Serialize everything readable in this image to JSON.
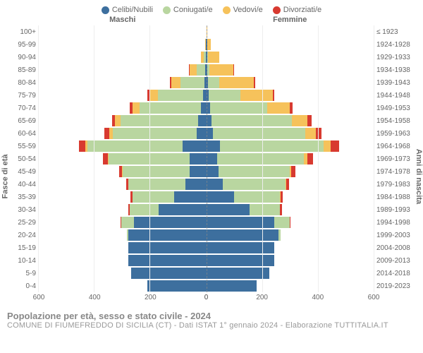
{
  "legend": [
    {
      "label": "Celibi/Nubili",
      "color": "#3d6f9e"
    },
    {
      "label": "Coniugati/e",
      "color": "#b9d6a0"
    },
    {
      "label": "Vedovi/e",
      "color": "#f6c25b"
    },
    {
      "label": "Divorziati/e",
      "color": "#d83a30"
    }
  ],
  "headers": {
    "male": "Maschi",
    "female": "Femmine",
    "birth_years": "≤ 1923"
  },
  "axis": {
    "y_left_title": "Fasce di età",
    "y_right_title": "Anni di nascita",
    "x_ticks": [
      600,
      400,
      200,
      0,
      200,
      400,
      600
    ],
    "x_max": 600
  },
  "age_labels": [
    "100+",
    "95-99",
    "90-94",
    "85-89",
    "80-84",
    "75-79",
    "70-74",
    "65-69",
    "60-64",
    "55-59",
    "50-54",
    "45-49",
    "40-44",
    "35-39",
    "30-34",
    "25-29",
    "20-24",
    "15-19",
    "10-14",
    "5-9",
    "0-4"
  ],
  "birth_labels": [
    "≤ 1923",
    "1924-1928",
    "1929-1933",
    "1934-1938",
    "1939-1943",
    "1944-1948",
    "1949-1953",
    "1954-1958",
    "1959-1963",
    "1964-1968",
    "1969-1973",
    "1974-1978",
    "1979-1983",
    "1984-1988",
    "1989-1993",
    "1994-1998",
    "1999-2003",
    "2004-2008",
    "2009-2013",
    "2014-2018",
    "2019-2023"
  ],
  "bars": {
    "male": [
      {
        "c": 0,
        "m": 0,
        "w": 0,
        "d": 0
      },
      {
        "c": 2,
        "m": 0,
        "w": 2,
        "d": 0
      },
      {
        "c": 2,
        "m": 6,
        "w": 10,
        "d": 0
      },
      {
        "c": 4,
        "m": 30,
        "w": 25,
        "d": 2
      },
      {
        "c": 6,
        "m": 85,
        "w": 35,
        "d": 4
      },
      {
        "c": 12,
        "m": 160,
        "w": 32,
        "d": 6
      },
      {
        "c": 20,
        "m": 220,
        "w": 25,
        "d": 10
      },
      {
        "c": 28,
        "m": 280,
        "w": 18,
        "d": 12
      },
      {
        "c": 35,
        "m": 300,
        "w": 12,
        "d": 18
      },
      {
        "c": 85,
        "m": 340,
        "w": 8,
        "d": 22
      },
      {
        "c": 60,
        "m": 290,
        "w": 3,
        "d": 17
      },
      {
        "c": 60,
        "m": 240,
        "w": 2,
        "d": 10
      },
      {
        "c": 75,
        "m": 205,
        "w": 0,
        "d": 8
      },
      {
        "c": 115,
        "m": 150,
        "w": 0,
        "d": 6
      },
      {
        "c": 170,
        "m": 105,
        "w": 0,
        "d": 4
      },
      {
        "c": 260,
        "m": 45,
        "w": 0,
        "d": 2
      },
      {
        "c": 280,
        "m": 4,
        "w": 0,
        "d": 0
      },
      {
        "c": 280,
        "m": 0,
        "w": 0,
        "d": 0
      },
      {
        "c": 280,
        "m": 0,
        "w": 0,
        "d": 0
      },
      {
        "c": 270,
        "m": 0,
        "w": 0,
        "d": 0
      },
      {
        "c": 210,
        "m": 0,
        "w": 0,
        "d": 0
      }
    ],
    "female": [
      {
        "c": 0,
        "m": 0,
        "w": 3,
        "d": 0
      },
      {
        "c": 4,
        "m": 0,
        "w": 12,
        "d": 0
      },
      {
        "c": 4,
        "m": 2,
        "w": 40,
        "d": 0
      },
      {
        "c": 4,
        "m": 8,
        "w": 85,
        "d": 2
      },
      {
        "c": 6,
        "m": 40,
        "w": 125,
        "d": 4
      },
      {
        "c": 8,
        "m": 115,
        "w": 115,
        "d": 6
      },
      {
        "c": 14,
        "m": 205,
        "w": 80,
        "d": 10
      },
      {
        "c": 18,
        "m": 290,
        "w": 55,
        "d": 14
      },
      {
        "c": 25,
        "m": 330,
        "w": 38,
        "d": 20
      },
      {
        "c": 50,
        "m": 370,
        "w": 25,
        "d": 30
      },
      {
        "c": 40,
        "m": 310,
        "w": 12,
        "d": 22
      },
      {
        "c": 45,
        "m": 255,
        "w": 5,
        "d": 15
      },
      {
        "c": 60,
        "m": 225,
        "w": 2,
        "d": 10
      },
      {
        "c": 100,
        "m": 165,
        "w": 1,
        "d": 8
      },
      {
        "c": 155,
        "m": 110,
        "w": 0,
        "d": 6
      },
      {
        "c": 245,
        "m": 55,
        "w": 0,
        "d": 3
      },
      {
        "c": 260,
        "m": 6,
        "w": 0,
        "d": 0
      },
      {
        "c": 245,
        "m": 0,
        "w": 0,
        "d": 0
      },
      {
        "c": 245,
        "m": 0,
        "w": 0,
        "d": 0
      },
      {
        "c": 225,
        "m": 0,
        "w": 0,
        "d": 0
      },
      {
        "c": 180,
        "m": 0,
        "w": 0,
        "d": 0
      }
    ]
  },
  "colors": {
    "celibi": "#3d6f9e",
    "coniugati": "#b9d6a0",
    "vedovi": "#f6c25b",
    "divorziati": "#d83a30",
    "grid": "#eeeeee",
    "center": "#888888"
  },
  "footer": {
    "title": "Popolazione per età, sesso e stato civile - 2024",
    "sub": "COMUNE DI FIUMEFREDDO DI SICILIA (CT) - Dati ISTAT 1° gennaio 2024 - Elaborazione TUTTITALIA.IT"
  }
}
